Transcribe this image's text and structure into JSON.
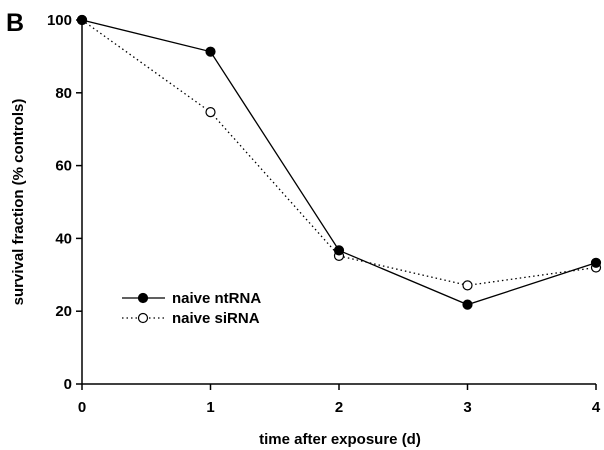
{
  "chart_data": {
    "type": "line",
    "panel_label": "B",
    "xlabel": "time after exposure (d)",
    "ylabel": "survival fraction (% controls)",
    "xlim": [
      0,
      4
    ],
    "ylim": [
      0,
      100
    ],
    "xticks": [
      0,
      1,
      2,
      3,
      4
    ],
    "yticks": [
      0,
      20,
      40,
      60,
      80,
      100
    ],
    "grid": false,
    "legend": "middle-left",
    "series": [
      {
        "name": "naive ntRNA",
        "line_style": "solid",
        "marker": "filled-circle",
        "x": [
          0,
          1,
          2,
          3,
          4
        ],
        "y": [
          100,
          91.3,
          36.7,
          21.8,
          33.3
        ]
      },
      {
        "name": "naive siRNA",
        "line_style": "dotted",
        "marker": "open-circle",
        "x": [
          0,
          1,
          2,
          3,
          4
        ],
        "y": [
          100,
          74.7,
          35.2,
          27.1,
          32.0
        ]
      }
    ]
  }
}
